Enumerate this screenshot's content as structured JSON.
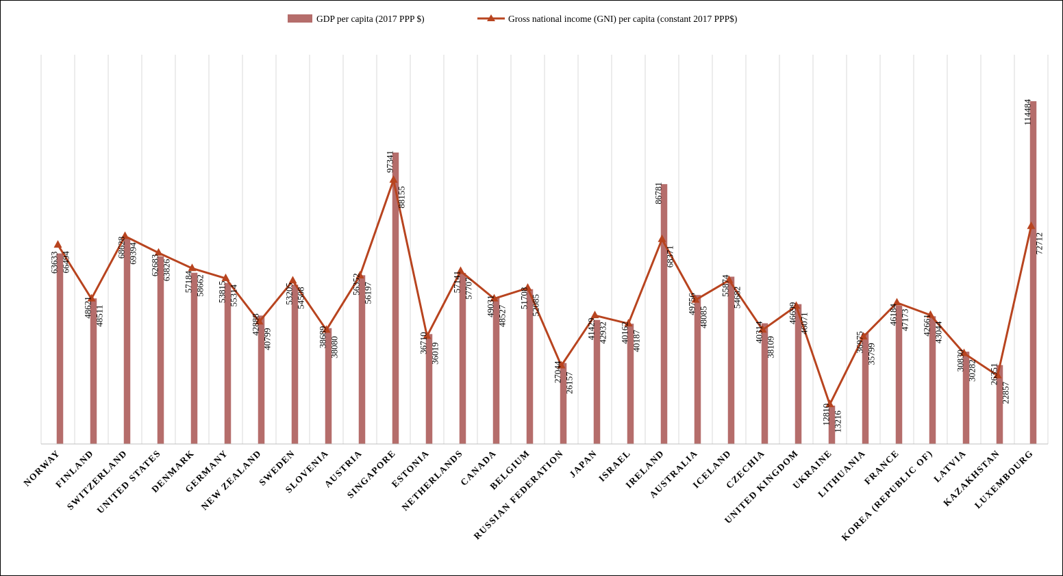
{
  "chart_data": {
    "type": "bar",
    "categories": [
      "NORWAY",
      "FINLAND",
      "SWITZERLAND",
      "UNITED STATES",
      "DENMARK",
      "GERMANY",
      "NEW ZEALAND",
      "SWEDEN",
      "SLOVENIA",
      "AUSTRIA",
      "SINGAPORE",
      "ESTONIA",
      "NETHERLANDS",
      "CANADA",
      "BELGIUM",
      "RUSSIAN FEDERATION",
      "JAPAN",
      "ISRAEL",
      "IRELAND",
      "AUSTRALIA",
      "ICELAND",
      "CZECHIA",
      "UNITED KINGDOM",
      "UKRAINE",
      "LITHUANIA",
      "FRANCE",
      "KOREA (REPUBLIC OF)",
      "LATVIA",
      "KAZAKHSTAN",
      "LUXEMBOURG"
    ],
    "series": [
      {
        "name": "GDP per capita (2017 PPP $)",
        "type": "bar",
        "color": "#b56d6b",
        "values": [
          63633,
          48621,
          68628,
          62683,
          57184,
          53815,
          42888,
          53205,
          38689,
          56352,
          97341,
          36710,
          57141,
          49031,
          51708,
          27044,
          41429,
          40162,
          86781,
          49756,
          55874,
          40314,
          46699,
          12810,
          36975,
          46184,
          42661,
          30830,
          26351,
          114484
        ]
      },
      {
        "name": "Gross national income (GNI) per capita (constant 2017 PPP$)",
        "type": "line",
        "color": "#b8441f",
        "marker": "triangle",
        "values": [
          66494,
          48511,
          69394,
          63826,
          58662,
          55314,
          40799,
          54508,
          38080,
          56197,
          88155,
          36019,
          57707,
          48527,
          52085,
          26157,
          42932,
          40187,
          68371,
          48085,
          54682,
          38109,
          46071,
          13216,
          35799,
          47173,
          43044,
          30282,
          22857,
          72712
        ]
      }
    ],
    "ylim": [
      0,
      130000
    ],
    "grid": "vertical",
    "legend": "top-center"
  }
}
